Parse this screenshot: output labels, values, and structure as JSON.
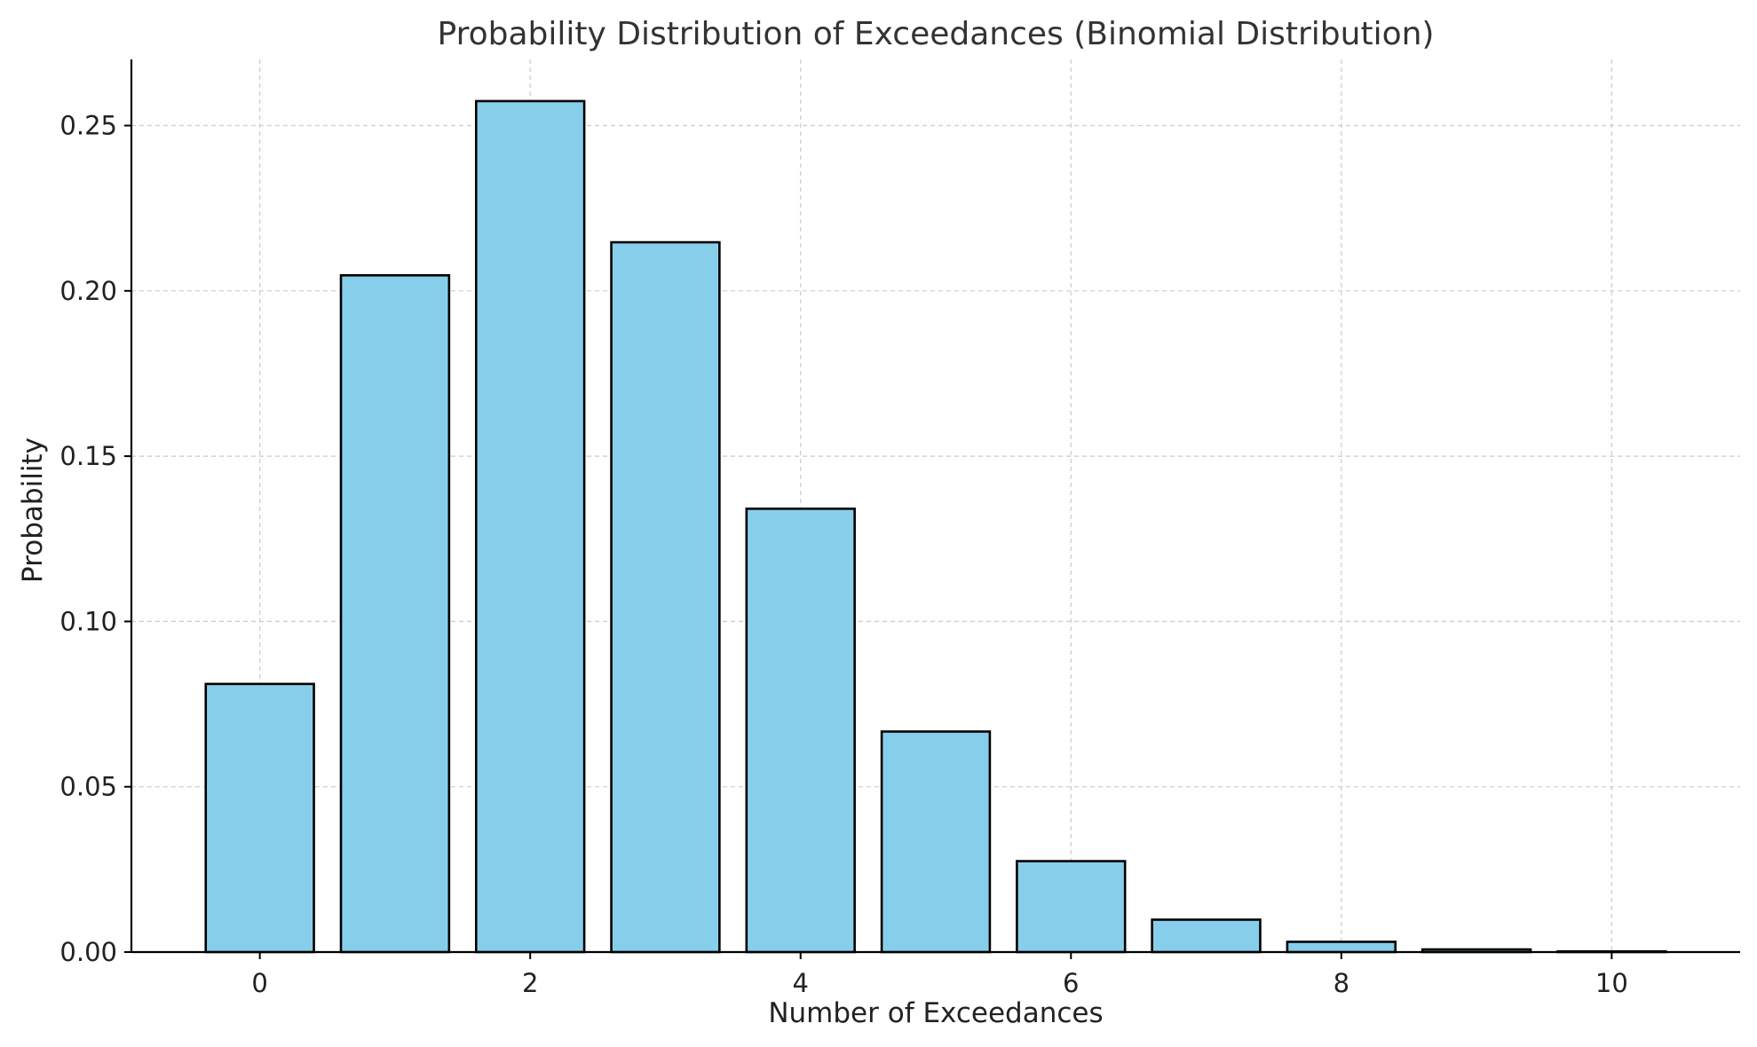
{
  "chart_data": {
    "type": "bar",
    "title": "Probability Distribution of Exceedances (Binomial Distribution)",
    "xlabel": "Number of Exceedances",
    "ylabel": "Probability",
    "categories": [
      0,
      1,
      2,
      3,
      4,
      5,
      6,
      7,
      8,
      9,
      10
    ],
    "values": [
      0.0811,
      0.2047,
      0.2574,
      0.2147,
      0.1341,
      0.0667,
      0.0275,
      0.0098,
      0.0031,
      0.0008,
      0.0002
    ],
    "xlim": [
      -0.95,
      10.95
    ],
    "ylim": [
      0,
      0.27
    ],
    "xticks": [
      0,
      2,
      4,
      6,
      8,
      10
    ],
    "yticks": [
      0.0,
      0.05,
      0.1,
      0.15,
      0.2,
      0.25
    ],
    "ytick_labels": [
      "0.00",
      "0.05",
      "0.10",
      "0.15",
      "0.20",
      "0.25"
    ],
    "grid": true,
    "bar_color": "#87CEEB",
    "edge_color": "#000000"
  }
}
